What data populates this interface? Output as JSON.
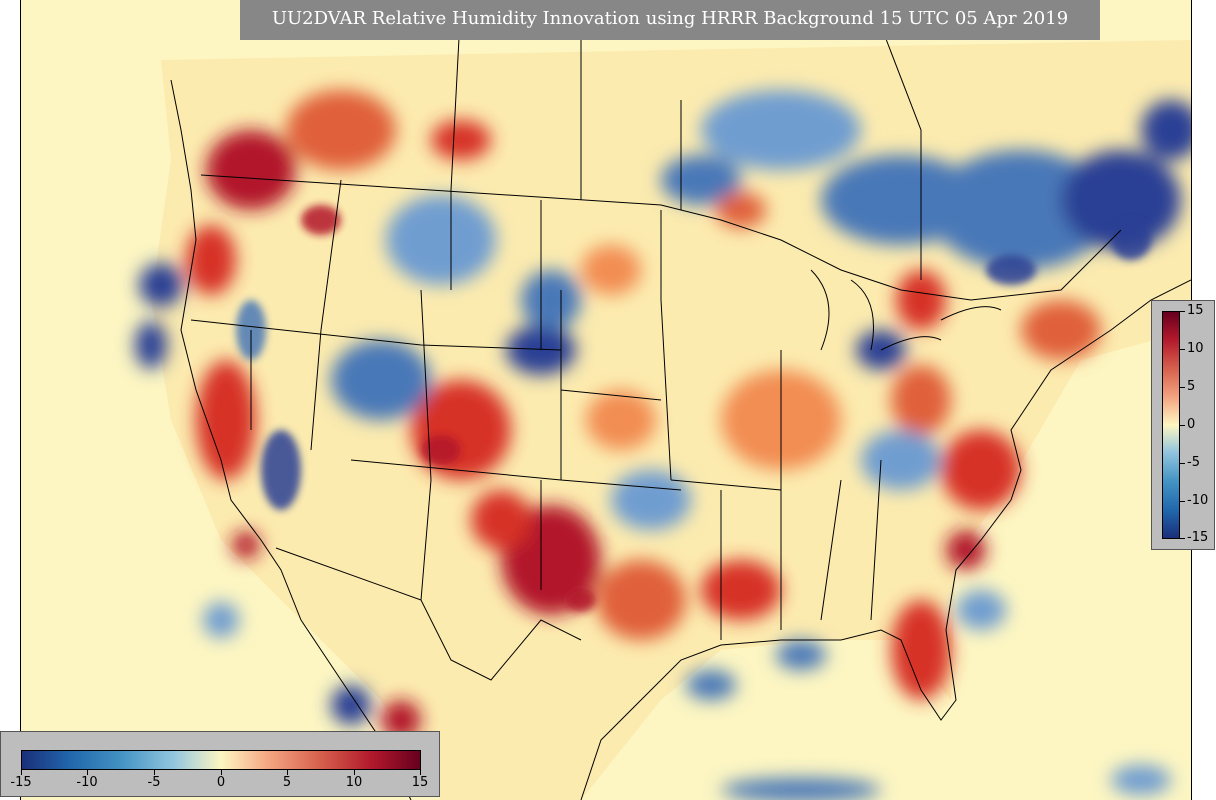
{
  "title": "UU2DVAR Relative Humidity Innovation using HRRR Background 15 UTC 05 Apr 2019",
  "colorbar_right": {
    "ticks": [
      "15",
      "10",
      "5",
      "0",
      "-5",
      "-10",
      "-15"
    ],
    "range": [
      -15,
      15
    ]
  },
  "colorbar_bottom": {
    "ticks": [
      "-15",
      "-10",
      "-5",
      "0",
      "5",
      "10",
      "15"
    ],
    "range": [
      -15,
      15
    ]
  },
  "colors": {
    "ocean_background": "#fdf6c2",
    "strong_negative": "#2b3f94",
    "negative": "#6f9dd0",
    "neutral": "#fdf6c2",
    "positive": "#f28d52",
    "strong_positive": "#b2182b",
    "border_lines": "#000000",
    "title_background": "#878787"
  }
}
